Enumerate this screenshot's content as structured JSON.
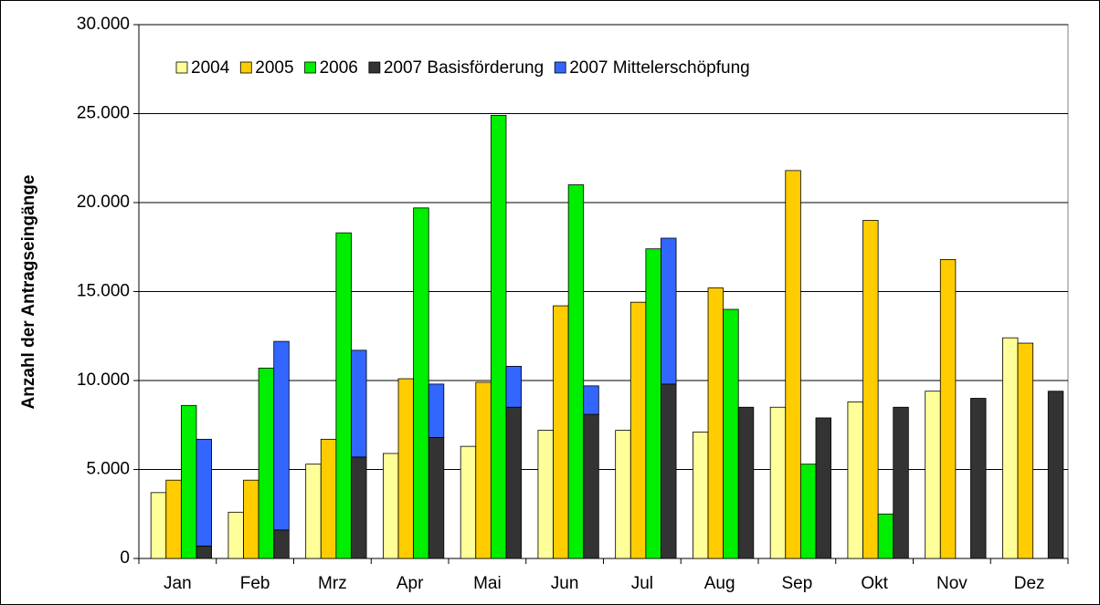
{
  "chart_data": {
    "type": "bar",
    "ylabel": "Anzahl der Antragseingänge",
    "categories": [
      "Jan",
      "Feb",
      "Mrz",
      "Apr",
      "Mai",
      "Jun",
      "Jul",
      "Aug",
      "Sep",
      "Okt",
      "Nov",
      "Dez"
    ],
    "series": [
      {
        "name": "2004",
        "color": "#ffff99",
        "values": [
          3700,
          2600,
          5300,
          5900,
          6300,
          7200,
          7200,
          7100,
          8500,
          8800,
          9400,
          12400
        ]
      },
      {
        "name": "2005",
        "color": "#ffcc00",
        "values": [
          4400,
          4400,
          6700,
          10100,
          9900,
          14200,
          14400,
          15200,
          21800,
          19000,
          16800,
          12100
        ]
      },
      {
        "name": "2006",
        "color": "#00ee00",
        "values": [
          8600,
          10700,
          18300,
          19700,
          24900,
          21000,
          17400,
          14000,
          5300,
          2500,
          null,
          null
        ]
      },
      {
        "name": "2007 Basisförderung",
        "color": "#333333",
        "stack": "2007",
        "values": [
          700,
          1600,
          5700,
          6800,
          8500,
          8100,
          9800,
          8500,
          7900,
          8500,
          9000,
          9400
        ]
      },
      {
        "name": "2007 Mittelerschöpfung",
        "color": "#3366ff",
        "stack": "2007",
        "values": [
          6000,
          10600,
          6000,
          3000,
          2300,
          1600,
          8200,
          null,
          null,
          null,
          null,
          null
        ]
      }
    ],
    "ylim": [
      0,
      30000
    ],
    "yticks": [
      0,
      {
        "value": 5000,
        "label": "5.000"
      },
      {
        "value": 10000,
        "label": "10.000"
      },
      {
        "value": 15000,
        "label": "15.000"
      },
      {
        "value": 20000,
        "label": "20.000"
      },
      {
        "value": 25000,
        "label": "25.000"
      },
      {
        "value": 30000,
        "label": "30.000"
      }
    ],
    "grid": true,
    "legend": "top"
  }
}
